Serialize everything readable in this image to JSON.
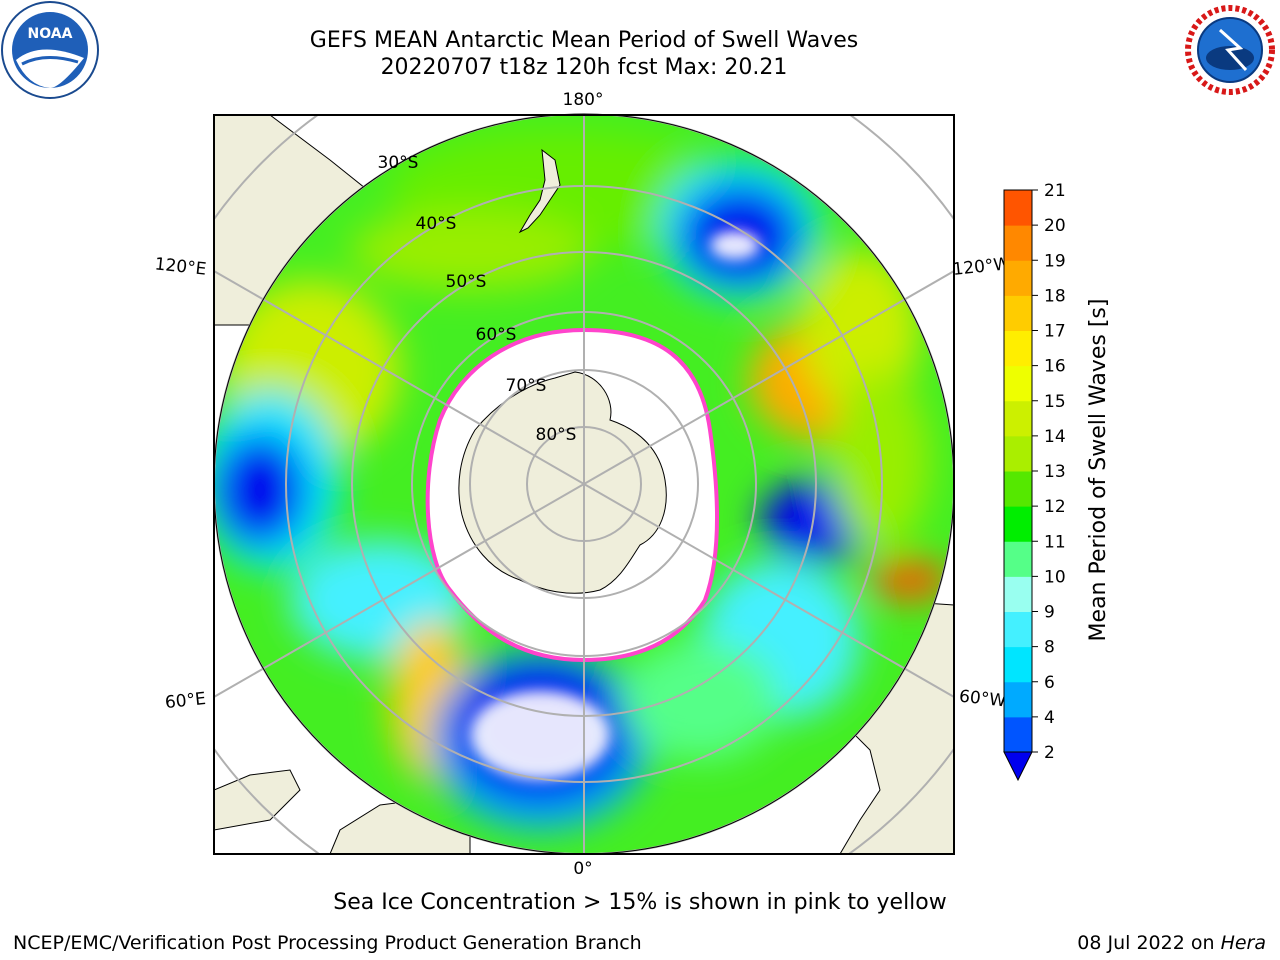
{
  "title": {
    "line1": "GEFS MEAN Antarctic Mean Period of Swell Waves",
    "line2": "20220707 t18z 120h fcst   Max: 20.21"
  },
  "map": {
    "longitude_labels": {
      "top": "180°",
      "bottom": "0°",
      "left_upper": "120°E",
      "left_lower": "60°E",
      "right_upper": "120°W",
      "right_lower": "60°W"
    },
    "latitude_labels": [
      "30°S",
      "40°S",
      "50°S",
      "60°S",
      "70°S",
      "80°S"
    ],
    "colors": {
      "land": "#efeedb",
      "ice": "#ffffff",
      "graticule": "#b0b0b0",
      "ice_edge": "#ff44cc"
    }
  },
  "colorbar": {
    "label": "Mean Period of Swell Waves [s]",
    "ticks": [
      "2",
      "4",
      "6",
      "8",
      "9",
      "10",
      "11",
      "12",
      "13",
      "14",
      "15",
      "16",
      "17",
      "18",
      "19",
      "20",
      "21"
    ],
    "colors": [
      "#0000ee",
      "#0055ff",
      "#00aaff",
      "#00e5ff",
      "#44f0ff",
      "#99fff0",
      "#55ff88",
      "#00ee00",
      "#55e800",
      "#aaee00",
      "#ccf000",
      "#eeff00",
      "#ffee00",
      "#ffcc00",
      "#ffaa00",
      "#ff8800",
      "#ff5500",
      "#ff2200",
      "#ff0000"
    ]
  },
  "notes": {
    "sea_ice": "Sea Ice Concentration > 15% is shown in pink to yellow"
  },
  "footer": {
    "left": "NCEP/EMC/Verification Post Processing Product Generation Branch",
    "right_prefix": "08 Jul 2022 on ",
    "right_machine": "Hera"
  },
  "logos": {
    "noaa": "NOAA",
    "nws": "NATIONAL WEATHER SERVICE"
  }
}
